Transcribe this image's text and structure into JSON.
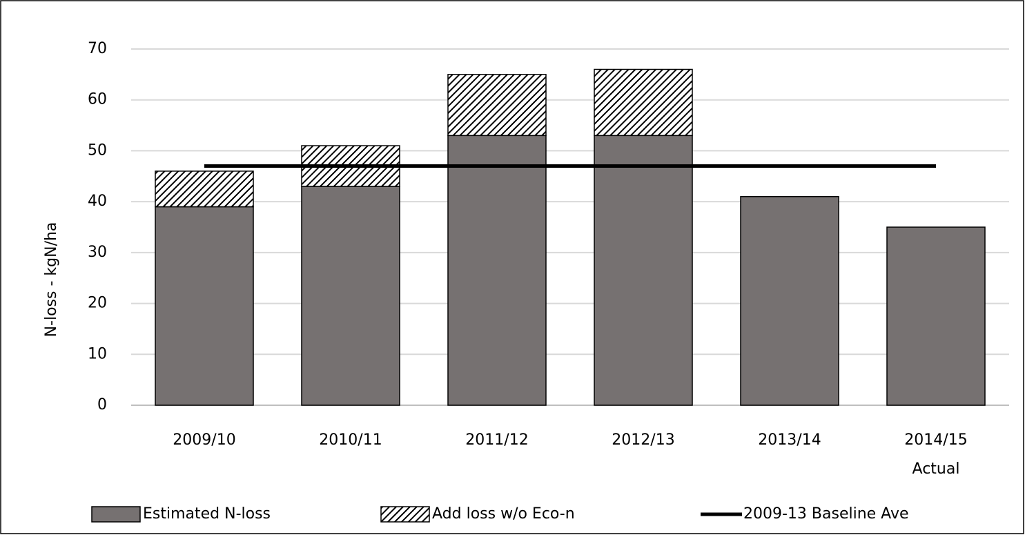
{
  "chart_data": {
    "type": "bar",
    "y_label": "N-loss - kgN/ha",
    "categories": [
      "2009/10",
      "2010/11",
      "2011/12",
      "2012/13",
      "2013/14",
      "2014/15\nActual"
    ],
    "series": [
      {
        "name": "Estimated N-loss",
        "color": "#767171",
        "values": [
          39,
          43,
          53,
          53,
          41,
          35
        ]
      },
      {
        "name": "Add loss w/o Eco-n",
        "color": "#000000",
        "values": [
          7,
          8,
          12,
          13,
          null,
          null
        ]
      },
      {
        "name": "2009-13 Baseline Ave",
        "color": "#000000",
        "type": "line",
        "values": [
          47,
          47,
          47,
          47,
          47,
          47
        ]
      }
    ],
    "ylim": [
      0,
      70
    ],
    "yticks": [
      0,
      10,
      20,
      30,
      40,
      50,
      60,
      70
    ],
    "grid": true,
    "legend": "bottom"
  }
}
